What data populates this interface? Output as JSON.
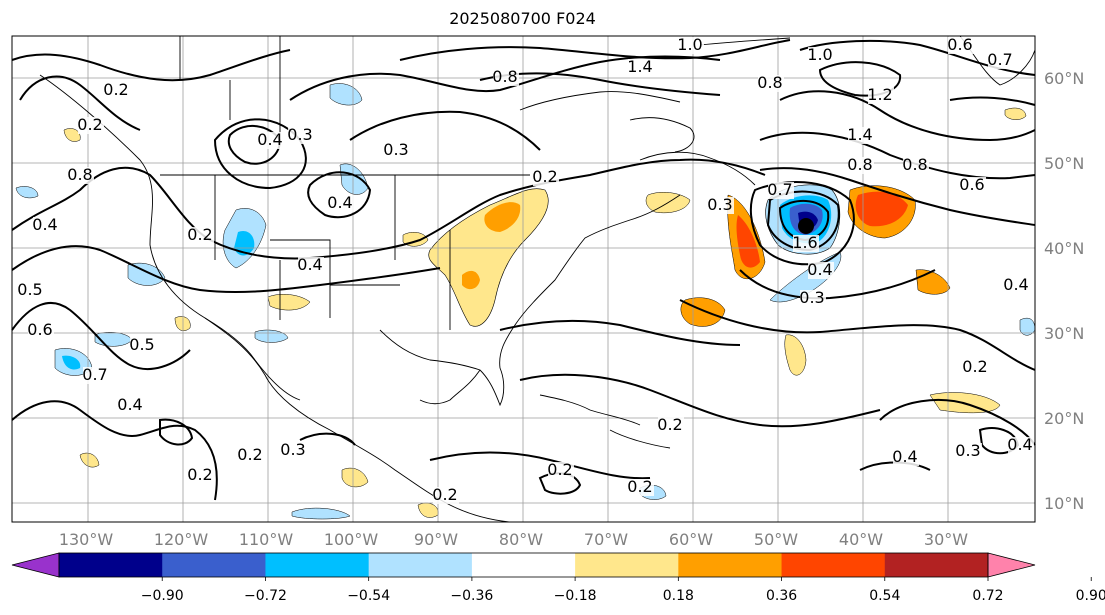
{
  "title": "2025080700 F024",
  "map": {
    "lon_labels": [
      "130°W",
      "120°W",
      "110°W",
      "100°W",
      "90°W",
      "80°W",
      "70°W",
      "60°W",
      "50°W",
      "40°W",
      "30°W"
    ],
    "lat_labels": [
      "60°N",
      "50°N",
      "40°N",
      "30°N",
      "20°N",
      "10°N"
    ],
    "contour_labels": [
      "0.2",
      "0.3",
      "0.4",
      "0.5",
      "0.6",
      "0.7",
      "0.8",
      "1.0",
      "1.2",
      "1.4",
      "1.6"
    ]
  },
  "colorbar": {
    "tick_labels": [
      "−0.90",
      "−0.72",
      "−0.54",
      "−0.36",
      "−0.18",
      "0.18",
      "0.36",
      "0.54",
      "0.72",
      "0.90"
    ],
    "colors": [
      "#9932cc",
      "#00008b",
      "#3a5fcd",
      "#00bfff",
      "#b0e2ff",
      "#ffffff",
      "#ffe78c",
      "#ff9f00",
      "#ff4500",
      "#b22222",
      "#ff82ab"
    ]
  }
}
